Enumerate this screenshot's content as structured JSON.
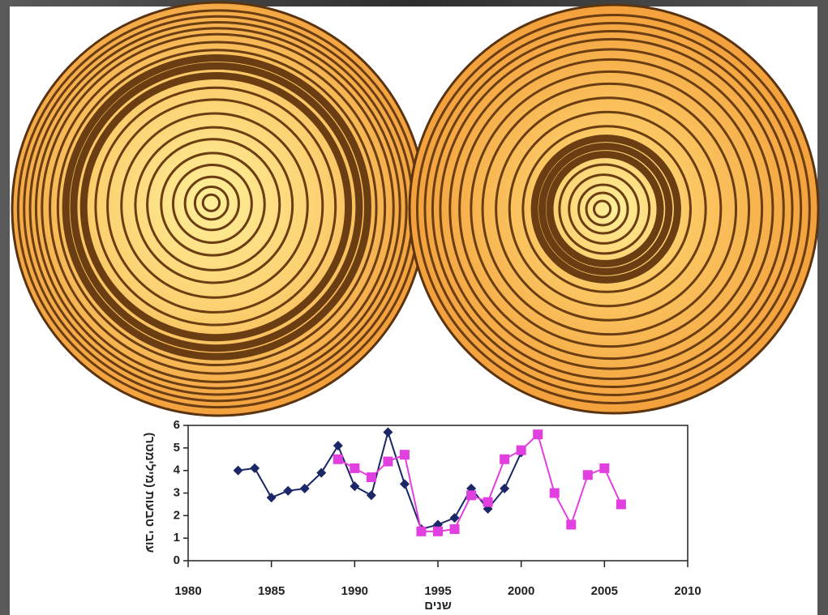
{
  "chart_data": {
    "type": "line",
    "x_label": "שנים",
    "y_label": "עובי טבעות (מילימטר)",
    "x": [
      1983,
      1984,
      1985,
      1986,
      1987,
      1988,
      1989,
      1990,
      1991,
      1992,
      1993,
      1994,
      1995,
      1996,
      1997,
      1998,
      1999,
      2000,
      2001,
      2002,
      2003,
      2004,
      2005,
      2006
    ],
    "series": [
      {
        "color": "#1b2766",
        "marker": "diamond",
        "values": [
          4.0,
          4.1,
          2.8,
          3.1,
          3.2,
          3.9,
          5.1,
          3.3,
          2.9,
          5.7,
          3.4,
          1.4,
          1.6,
          1.9,
          3.2,
          2.3,
          3.2,
          4.8,
          null,
          null,
          null,
          null,
          null,
          null
        ]
      },
      {
        "color": "#e23fe0",
        "marker": "square",
        "values": [
          null,
          null,
          null,
          null,
          null,
          null,
          4.5,
          4.1,
          3.7,
          4.4,
          4.7,
          1.3,
          1.3,
          1.4,
          2.9,
          2.6,
          4.5,
          4.9,
          5.6,
          3.0,
          1.6,
          3.8,
          4.1,
          2.5
        ]
      }
    ],
    "xlim": [
      1980,
      2010
    ],
    "xticks": [
      1980,
      1985,
      1990,
      1995,
      2000,
      2005,
      2010
    ],
    "ylim": [
      0,
      6
    ],
    "yticks": [
      0,
      1,
      2,
      3,
      4,
      5,
      6
    ]
  }
}
